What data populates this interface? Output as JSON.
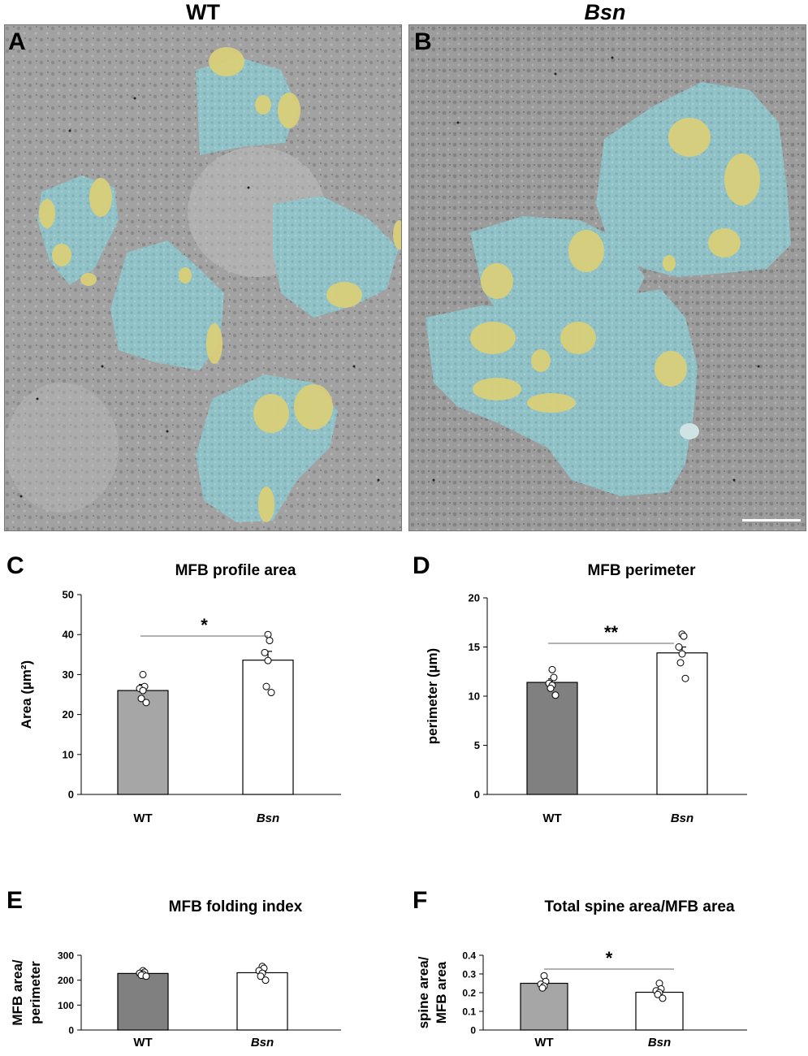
{
  "figure": {
    "column_titles": [
      "WT",
      "Bsn"
    ],
    "micrograph_panels": [
      {
        "label": "A",
        "condition": "WT"
      },
      {
        "label": "B",
        "condition": "Bsn"
      }
    ],
    "colors": {
      "em_background": "#9d9d9d",
      "mfb_overlay": "#8fc4c9",
      "spine_overlay": "#d9cf7a",
      "wt_bar": "#a6a6a6",
      "wt_bar_dark": "#808080",
      "bsn_bar": "#ffffff"
    }
  },
  "chart_data": [
    {
      "panel": "C",
      "type": "bar",
      "title": "MFB profile area",
      "ylabel": "Area (µm²)",
      "categories": [
        "WT",
        "Bsn"
      ],
      "values": [
        26,
        33.6
      ],
      "errors": [
        1.5,
        2.2
      ],
      "ylim": [
        0,
        50
      ],
      "yticks": [
        0,
        10,
        20,
        30,
        40,
        50
      ],
      "ytick_labels": [
        "0",
        "10",
        "20",
        "30",
        "40",
        "50"
      ],
      "points": [
        [
          30,
          27,
          26.5,
          26,
          24,
          23
        ],
        [
          40,
          38.5,
          35.5,
          33.5,
          27,
          25.5
        ]
      ],
      "significance": "*"
    },
    {
      "panel": "D",
      "type": "bar",
      "title": "MFB perimeter",
      "ylabel": "perimeter (µm)",
      "categories": [
        "WT",
        "Bsn"
      ],
      "values": [
        11.4,
        14.4
      ],
      "errors": [
        0.35,
        0.6
      ],
      "ylim": [
        0,
        20
      ],
      "yticks": [
        0,
        5,
        10,
        15,
        20
      ],
      "ytick_labels": [
        "0",
        "5",
        "10",
        "15",
        "20"
      ],
      "points": [
        [
          12.7,
          11.9,
          11.3,
          11.1,
          10.8,
          10.1
        ],
        [
          16.3,
          16.1,
          15,
          14.3,
          13.4,
          11.8
        ]
      ],
      "significance": "**"
    },
    {
      "panel": "E",
      "type": "bar",
      "title": "MFB folding index",
      "ylabel": "MFB area/ perimeter",
      "categories": [
        "WT",
        "Bsn"
      ],
      "values": [
        227,
        230
      ],
      "errors": [
        4,
        6
      ],
      "ylim": [
        0,
        300
      ],
      "yticks": [
        0,
        100,
        200,
        300
      ],
      "ytick_labels": [
        "0",
        "100",
        "200",
        "300"
      ],
      "points": [
        [
          238,
          232,
          228,
          224,
          220,
          216
        ],
        [
          255,
          248,
          238,
          228,
          216,
          200
        ]
      ],
      "significance": ""
    },
    {
      "panel": "F",
      "type": "bar",
      "title": "Total spine area/MFB area",
      "ylabel": "spine area/ MFB area",
      "categories": [
        "WT",
        "Bsn"
      ],
      "values": [
        0.25,
        0.202
      ],
      "errors": [
        0.004,
        0.01
      ],
      "ylim": [
        0,
        0.4
      ],
      "yticks": [
        0,
        0.1,
        0.2,
        0.3,
        0.4
      ],
      "ytick_labels": [
        "0",
        "0.1",
        "0.2",
        "0.3",
        "0.4"
      ],
      "points": [
        [
          0.29,
          0.26,
          0.245,
          0.235,
          0.225
        ],
        [
          0.25,
          0.22,
          0.21,
          0.2,
          0.19,
          0.17
        ]
      ],
      "significance": "*"
    }
  ]
}
